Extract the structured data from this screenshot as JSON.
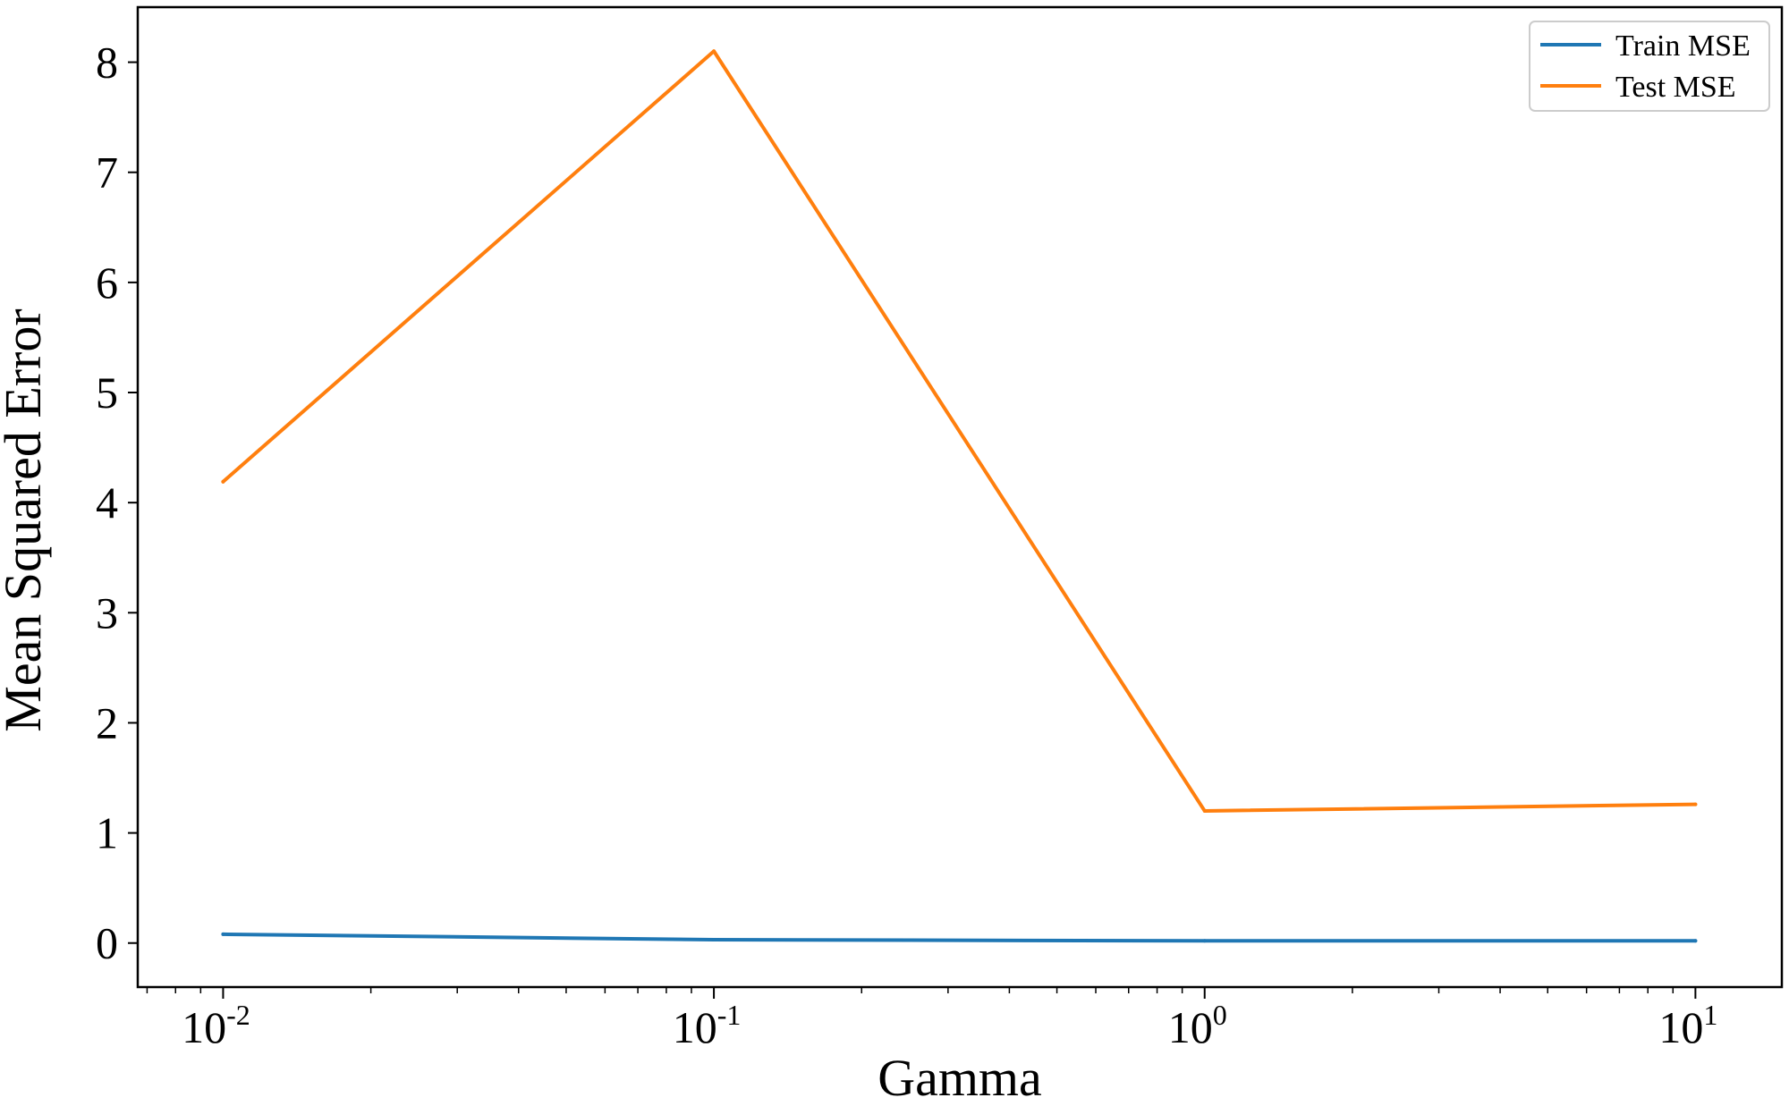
{
  "chart_data": {
    "type": "line",
    "title": "",
    "xlabel": "Gamma",
    "ylabel": "Mean Squared Error",
    "xscale": "log",
    "x": [
      0.01,
      0.1,
      1,
      10
    ],
    "xlim": [
      0.0067,
      15
    ],
    "ylim": [
      -0.4,
      8.5
    ],
    "xticks": [
      {
        "value": 0.01,
        "base": "10",
        "exp": "-2"
      },
      {
        "value": 0.1,
        "base": "10",
        "exp": "-1"
      },
      {
        "value": 1,
        "base": "10",
        "exp": "0"
      },
      {
        "value": 10,
        "base": "10",
        "exp": "1"
      }
    ],
    "yticks": [
      {
        "value": 0,
        "label": "0"
      },
      {
        "value": 1,
        "label": "1"
      },
      {
        "value": 2,
        "label": "2"
      },
      {
        "value": 3,
        "label": "3"
      },
      {
        "value": 4,
        "label": "4"
      },
      {
        "value": 5,
        "label": "5"
      },
      {
        "value": 6,
        "label": "6"
      },
      {
        "value": 7,
        "label": "7"
      },
      {
        "value": 8,
        "label": "8"
      }
    ],
    "grid": false,
    "legend_position": "top-right",
    "series": [
      {
        "name": "Train MSE",
        "color": "#1f77b4",
        "values": [
          0.08,
          0.03,
          0.02,
          0.02
        ]
      },
      {
        "name": "Test MSE",
        "color": "#ff7f0e",
        "values": [
          4.19,
          8.1,
          1.2,
          1.26
        ]
      }
    ]
  }
}
